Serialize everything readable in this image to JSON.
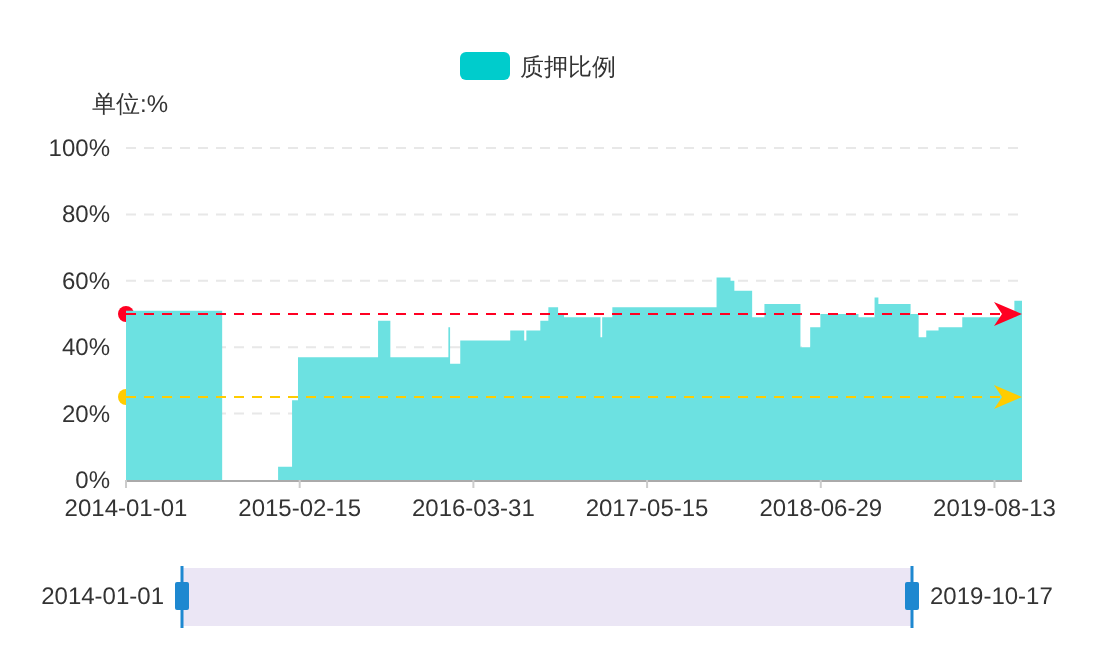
{
  "chart_data": {
    "type": "area",
    "ylabel": "单位:%",
    "legend": "top",
    "grid": "y",
    "x": [
      "2014-01-01",
      "2014-08-16",
      "2014-08-16",
      "2014-12-26",
      "2014-12-26",
      "2015-01-28",
      "2015-01-28",
      "2015-02-11",
      "2015-02-11",
      "2015-08-19",
      "2015-08-19",
      "2015-09-17",
      "2015-09-17",
      "2016-02-01",
      "2016-02-01",
      "2016-02-05",
      "2016-02-05",
      "2016-02-29",
      "2016-02-29",
      "2016-06-26",
      "2016-06-26",
      "2016-07-29",
      "2016-07-29",
      "2016-08-03",
      "2016-08-03",
      "2016-09-05",
      "2016-09-05",
      "2016-09-24",
      "2016-09-24",
      "2016-10-17",
      "2016-10-17",
      "2016-10-31",
      "2016-10-31",
      "2017-01-25",
      "2017-01-25",
      "2017-01-29",
      "2017-01-29",
      "2017-02-22",
      "2017-02-22",
      "2017-10-26",
      "2017-10-26",
      "2017-11-28",
      "2017-11-28",
      "2017-12-07",
      "2017-12-07",
      "2018-01-18",
      "2018-01-18",
      "2018-02-16",
      "2018-02-16",
      "2018-05-12",
      "2018-05-12",
      "2018-06-04",
      "2018-06-04",
      "2018-06-28",
      "2018-06-28",
      "2018-09-26",
      "2018-09-26",
      "2018-11-03",
      "2018-11-03",
      "2018-11-12",
      "2018-11-12",
      "2019-01-27",
      "2019-01-27",
      "2019-02-15",
      "2019-02-15",
      "2019-03-05",
      "2019-03-05",
      "2019-04-03",
      "2019-04-03",
      "2019-05-29",
      "2019-05-29",
      "2019-09-29",
      "2019-09-29",
      "2019-10-17"
    ],
    "series": [
      {
        "name": "质押比例",
        "color": "#6ce1e1",
        "values": [
          51,
          51,
          0,
          0,
          4,
          4,
          24,
          24,
          37,
          37,
          48,
          48,
          37,
          37,
          46,
          46,
          35,
          35,
          42,
          42,
          45,
          45,
          42,
          42,
          45,
          45,
          48,
          48,
          52,
          52,
          50,
          50,
          49,
          49,
          43,
          43,
          49,
          49,
          52,
          52,
          61,
          61,
          60,
          60,
          57,
          57,
          49,
          49,
          53,
          53,
          40,
          40,
          46,
          46,
          50,
          50,
          49,
          49,
          55,
          55,
          53,
          53,
          50,
          50,
          43,
          43,
          45,
          45,
          46,
          46,
          49,
          49,
          54,
          54
        ]
      }
    ],
    "xlim": [
      "2014-01-01",
      "2019-10-17"
    ],
    "xticks": [
      {
        "value": "2014-01-01",
        "label": "2014-01-01"
      },
      {
        "value": "2015-02-15",
        "label": "2015-02-15"
      },
      {
        "value": "2016-03-31",
        "label": "2016-03-31"
      },
      {
        "value": "2017-05-15",
        "label": "2017-05-15"
      },
      {
        "value": "2018-06-29",
        "label": "2018-06-29"
      },
      {
        "value": "2019-08-13",
        "label": "2019-08-13"
      }
    ],
    "ylim": [
      0,
      100
    ],
    "yticks": [
      {
        "value": 0,
        "label": "0%"
      },
      {
        "value": 20,
        "label": "20%"
      },
      {
        "value": 40,
        "label": "40%"
      },
      {
        "value": 60,
        "label": "60%"
      },
      {
        "value": 80,
        "label": "80%"
      },
      {
        "value": 100,
        "label": "100%"
      }
    ],
    "ref_lines": [
      {
        "axis": "y",
        "value": 50,
        "color": "#ff0022",
        "line_style": "dashed"
      },
      {
        "axis": "y",
        "value": 25,
        "color": "#ffcc00",
        "line_style": "dashed"
      }
    ],
    "annotations": [
      "2014-01-01",
      "2019-10-17"
    ]
  }
}
